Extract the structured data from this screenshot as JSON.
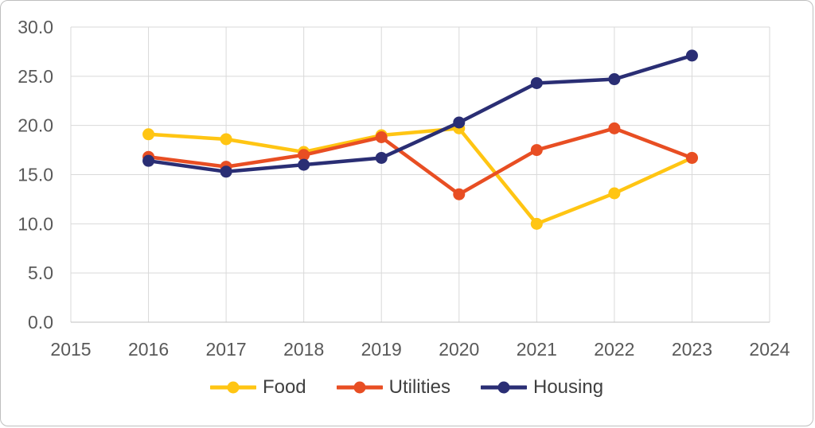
{
  "chart_data": {
    "type": "line",
    "x": [
      2016,
      2017,
      2018,
      2019,
      2020,
      2021,
      2022,
      2023
    ],
    "series": [
      {
        "name": "Food",
        "color": "#FFC513",
        "values": [
          19.1,
          18.6,
          17.3,
          19.0,
          19.7,
          10.0,
          13.1,
          16.7
        ]
      },
      {
        "name": "Utilities",
        "color": "#E84E23",
        "values": [
          16.8,
          15.8,
          17.0,
          18.8,
          13.0,
          17.5,
          19.7,
          16.7
        ]
      },
      {
        "name": "Housing",
        "color": "#2A2E74",
        "values": [
          16.4,
          15.3,
          16.0,
          16.7,
          20.3,
          24.3,
          24.7,
          27.1
        ]
      }
    ],
    "title": "",
    "xlabel": "",
    "ylabel": "",
    "xlim": [
      2015,
      2024
    ],
    "ylim": [
      0,
      30
    ],
    "xtick_labels": [
      "2015",
      "2016",
      "2017",
      "2018",
      "2019",
      "2020",
      "2021",
      "2022",
      "2023",
      "2024"
    ],
    "ytick_labels": [
      "0.0",
      "5.0",
      "10.0",
      "15.0",
      "20.0",
      "25.0",
      "30.0"
    ],
    "ytick_values": [
      0,
      5,
      10,
      15,
      20,
      25,
      30
    ],
    "xtick_values": [
      2015,
      2016,
      2017,
      2018,
      2019,
      2020,
      2021,
      2022,
      2023,
      2024
    ],
    "grid": true,
    "legend_position": "bottom",
    "colors": {
      "gridline": "#d9d9d9",
      "axis_line": "#bfbfbf",
      "tick_label": "#595959",
      "legend_text": "#404040",
      "frame_border": "#bfbfbf",
      "background": "#ffffff"
    }
  }
}
